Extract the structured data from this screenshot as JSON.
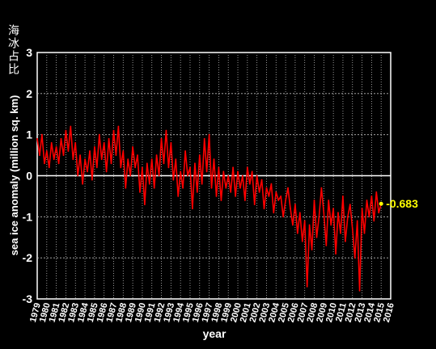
{
  "corner_title": "海冰占比",
  "chart_data": {
    "type": "line",
    "title": "",
    "xlabel": "year",
    "ylabel": "sea ice anomaly (million sq. km)",
    "xlim": [
      1979,
      2016
    ],
    "ylim": [
      -3,
      3
    ],
    "x_ticks": [
      "1979",
      "1980",
      "1981",
      "1982",
      "1983",
      "1984",
      "1985",
      "1986",
      "1987",
      "1988",
      "1989",
      "1990",
      "1991",
      "1992",
      "1993",
      "1994",
      "1995",
      "1996",
      "1997",
      "1998",
      "1999",
      "2000",
      "2001",
      "2002",
      "2003",
      "2004",
      "2005",
      "2006",
      "2007",
      "2008",
      "2009",
      "2010",
      "2011",
      "2012",
      "2013",
      "2014",
      "2015",
      "2016"
    ],
    "y_ticks": [
      "-3",
      "-2",
      "-1",
      "0",
      "1",
      "2",
      "3"
    ],
    "grid": true,
    "zero_line": true,
    "series": [
      {
        "color": "#ff0000",
        "x": [
          1979.0,
          1979.25,
          1979.5,
          1979.75,
          1980.0,
          1980.25,
          1980.5,
          1980.75,
          1981.0,
          1981.25,
          1981.5,
          1981.75,
          1982.0,
          1982.25,
          1982.5,
          1982.75,
          1983.0,
          1983.25,
          1983.5,
          1983.75,
          1984.0,
          1984.25,
          1984.5,
          1984.75,
          1985.0,
          1985.25,
          1985.5,
          1985.75,
          1986.0,
          1986.25,
          1986.5,
          1986.75,
          1987.0,
          1987.25,
          1987.5,
          1987.75,
          1988.0,
          1988.25,
          1988.5,
          1988.75,
          1989.0,
          1989.25,
          1989.5,
          1989.75,
          1990.0,
          1990.25,
          1990.5,
          1990.75,
          1991.0,
          1991.25,
          1991.5,
          1991.75,
          1992.0,
          1992.25,
          1992.5,
          1992.75,
          1993.0,
          1993.25,
          1993.5,
          1993.75,
          1994.0,
          1994.25,
          1994.5,
          1994.75,
          1995.0,
          1995.25,
          1995.5,
          1995.75,
          1996.0,
          1996.25,
          1996.5,
          1996.75,
          1997.0,
          1997.25,
          1997.5,
          1997.75,
          1998.0,
          1998.25,
          1998.5,
          1998.75,
          1999.0,
          1999.25,
          1999.5,
          1999.75,
          2000.0,
          2000.25,
          2000.5,
          2000.75,
          2001.0,
          2001.25,
          2001.5,
          2001.75,
          2002.0,
          2002.25,
          2002.5,
          2002.75,
          2003.0,
          2003.25,
          2003.5,
          2003.75,
          2004.0,
          2004.25,
          2004.5,
          2004.75,
          2005.0,
          2005.25,
          2005.5,
          2005.75,
          2006.0,
          2006.25,
          2006.5,
          2006.75,
          2007.0,
          2007.25,
          2007.5,
          2007.75,
          2008.0,
          2008.25,
          2008.5,
          2008.75,
          2009.0,
          2009.25,
          2009.5,
          2009.75,
          2010.0,
          2010.25,
          2010.5,
          2010.75,
          2011.0,
          2011.25,
          2011.5,
          2011.75,
          2012.0,
          2012.25,
          2012.5,
          2012.75,
          2013.0,
          2013.25,
          2013.5,
          2013.75,
          2014.0,
          2014.25,
          2014.5,
          2014.75,
          2015.0
        ],
        "y": [
          0.9,
          0.5,
          1.0,
          0.3,
          0.6,
          0.2,
          0.8,
          0.4,
          0.7,
          0.3,
          0.9,
          0.5,
          1.1,
          0.6,
          1.2,
          0.4,
          0.8,
          0.0,
          0.5,
          -0.2,
          0.4,
          0.1,
          0.6,
          -0.1,
          0.7,
          0.2,
          1.0,
          0.4,
          0.8,
          0.1,
          0.9,
          0.3,
          1.1,
          0.5,
          1.2,
          0.2,
          0.6,
          -0.3,
          0.4,
          0.0,
          0.7,
          0.2,
          0.5,
          -0.4,
          0.2,
          -0.7,
          0.3,
          -0.2,
          0.4,
          -0.3,
          0.5,
          0.0,
          0.9,
          0.3,
          1.1,
          0.2,
          0.8,
          -0.1,
          0.4,
          -0.5,
          0.1,
          -0.3,
          0.6,
          0.0,
          0.2,
          -0.8,
          0.3,
          -0.4,
          0.5,
          -0.2,
          0.9,
          0.1,
          1.0,
          -0.3,
          0.4,
          -0.5,
          0.2,
          -0.6,
          0.1,
          -0.3,
          0.0,
          -0.4,
          0.2,
          -0.5,
          0.1,
          -0.3,
          0.0,
          -0.6,
          0.2,
          -0.2,
          0.1,
          -0.7,
          0.0,
          -0.4,
          -0.1,
          -0.8,
          -0.3,
          -0.5,
          -0.2,
          -0.9,
          -0.4,
          -0.6,
          -0.5,
          -1.0,
          -0.6,
          -0.3,
          -0.8,
          -1.2,
          -0.7,
          -1.4,
          -0.9,
          -1.6,
          -1.1,
          -2.7,
          -1.2,
          -1.8,
          -0.6,
          -1.5,
          -1.0,
          -0.3,
          -0.9,
          -1.7,
          -0.6,
          -1.2,
          -0.8,
          -1.9,
          -0.9,
          -1.4,
          -0.5,
          -1.6,
          -1.0,
          -0.7,
          -1.3,
          -2.0,
          -1.1,
          -2.8,
          -0.8,
          -1.4,
          -0.6,
          -1.0,
          -0.5,
          -1.1,
          -0.4,
          -0.9,
          -0.683
        ],
        "last_value_label": "-0.683"
      }
    ]
  }
}
